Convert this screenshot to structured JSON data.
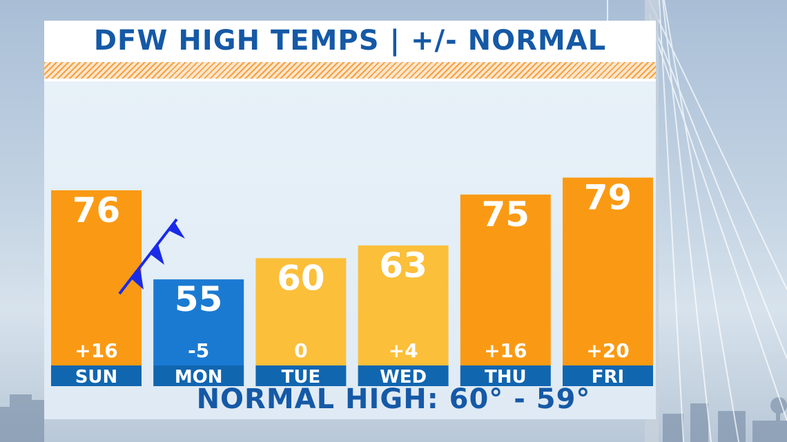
{
  "chart_data": {
    "type": "bar",
    "title": "DFW HIGH TEMPS | +/- NORMAL",
    "categories": [
      "SUN",
      "MON",
      "TUE",
      "WED",
      "THU",
      "FRI"
    ],
    "values": [
      76,
      55,
      60,
      63,
      75,
      79
    ],
    "departures": [
      "+16",
      "-5",
      "0",
      "+4",
      "+16",
      "+20"
    ],
    "bar_colors": [
      "#fa9a14",
      "#1a7ad2",
      "#fbbf3a",
      "#fbbf3a",
      "#fa9a14",
      "#fa9a14"
    ],
    "label_bar_color": "#1166b0",
    "cold_front_color": "#1a2be8",
    "footer": "NORMAL HIGH: 60° - 59°"
  }
}
